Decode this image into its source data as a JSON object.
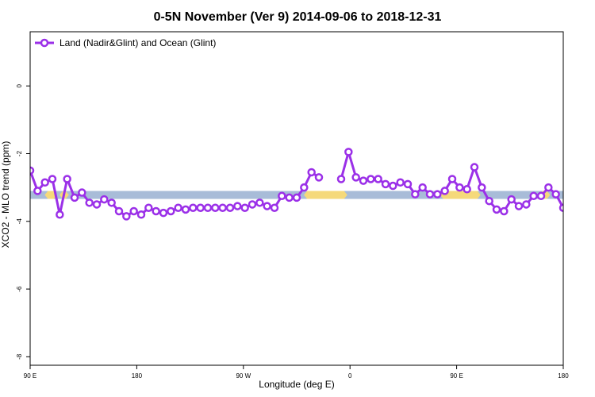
{
  "chart_data": {
    "type": "line",
    "title": "0-5N November (Ver 9)   2014-09-06 to 2018-12-31",
    "xlabel": "Longitude (deg E)",
    "ylabel": "XCO2 - MLO trend (ppm)",
    "xlim": [
      90,
      450
    ],
    "ylim": [
      -8.25,
      1.6
    ],
    "x_ticks": [
      {
        "value": 90,
        "label": "90 E"
      },
      {
        "value": 180,
        "label": "180"
      },
      {
        "value": 270,
        "label": "90 W"
      },
      {
        "value": 360,
        "label": "0"
      },
      {
        "value": 450,
        "label": "90 E"
      },
      {
        "value": 540,
        "label": "180"
      }
    ],
    "y_ticks": [
      {
        "value": 0,
        "label": "0"
      },
      {
        "value": -2,
        "label": "-2"
      },
      {
        "value": -4,
        "label": "-4"
      },
      {
        "value": -6,
        "label": "-6"
      },
      {
        "value": -8,
        "label": "-8"
      }
    ],
    "legend": {
      "position": "top-left"
    },
    "colors": {
      "series": "#9b30e8",
      "ocean": "#a8bcd8",
      "land": "#f5d97a"
    },
    "surface_band": {
      "y_center": -3.22,
      "ocean_color": "#a8bcd8",
      "land_color": "#f5d97a",
      "land_ranges": [
        [
          102,
          106
        ],
        [
          112,
          114
        ],
        [
          277,
          302
        ],
        [
          369,
          392
        ],
        [
          436,
          439
        ]
      ]
    },
    "series": [
      {
        "name": "Land (Nadir&Glint) and Ocean (Glint)",
        "segments": [
          {
            "x": [
              90,
              95,
              100,
              105,
              110,
              115,
              120,
              125,
              130,
              135,
              140,
              145,
              150,
              155,
              160,
              165,
              170,
              175,
              180,
              185,
              190,
              195,
              200,
              205,
              210,
              215,
              220,
              225,
              230,
              235,
              240,
              245,
              250,
              255,
              260,
              265,
              270,
              275,
              280,
              285
            ],
            "y": [
              -2.5,
              -3.1,
              -2.85,
              -2.75,
              -3.8,
              -2.75,
              -3.3,
              -3.15,
              -3.45,
              -3.5,
              -3.35,
              -3.45,
              -3.7,
              -3.85,
              -3.7,
              -3.8,
              -3.6,
              -3.7,
              -3.75,
              -3.7,
              -3.6,
              -3.65,
              -3.6,
              -3.6,
              -3.6,
              -3.6,
              -3.6,
              -3.6,
              -3.55,
              -3.6,
              -3.5,
              -3.45,
              -3.55,
              -3.6,
              -3.25,
              -3.3,
              -3.3,
              -3.0,
              -2.55,
              -2.7
            ]
          },
          {
            "x": [
              300,
              305,
              310,
              315,
              320,
              325,
              330,
              335,
              340,
              345,
              350,
              355,
              360,
              365,
              370,
              375,
              380,
              385,
              390,
              395,
              400,
              405,
              410,
              415,
              420,
              425,
              430,
              435,
              440,
              445,
              450,
              455,
              460,
              465,
              470,
              475,
              480,
              485,
              490,
              495,
              500,
              505,
              510,
              515,
              520,
              525,
              530,
              535,
              540
            ],
            "y": [
              -2.75,
              -1.95,
              -2.7,
              -2.8,
              -2.75,
              -2.75,
              -2.9,
              -2.95,
              -2.85,
              -2.9,
              -3.2,
              -3.0,
              -3.2,
              -3.2,
              -3.1,
              -2.75,
              -3.0,
              -3.05,
              -2.4,
              -3.0,
              -3.4,
              -3.65,
              -3.7,
              -3.35,
              -3.55,
              -3.5,
              -3.25,
              -3.25,
              -3.0,
              -3.2,
              -3.6,
              -2.55,
              -3.1,
              -2.85,
              -2.75,
              -3.8,
              -2.75,
              -3.3,
              -3.15,
              -3.45,
              -3.5,
              -3.35,
              -3.45,
              -3.7,
              -3.85,
              -3.7,
              -3.8,
              -3.6,
              -3.7
            ]
          }
        ]
      }
    ]
  }
}
